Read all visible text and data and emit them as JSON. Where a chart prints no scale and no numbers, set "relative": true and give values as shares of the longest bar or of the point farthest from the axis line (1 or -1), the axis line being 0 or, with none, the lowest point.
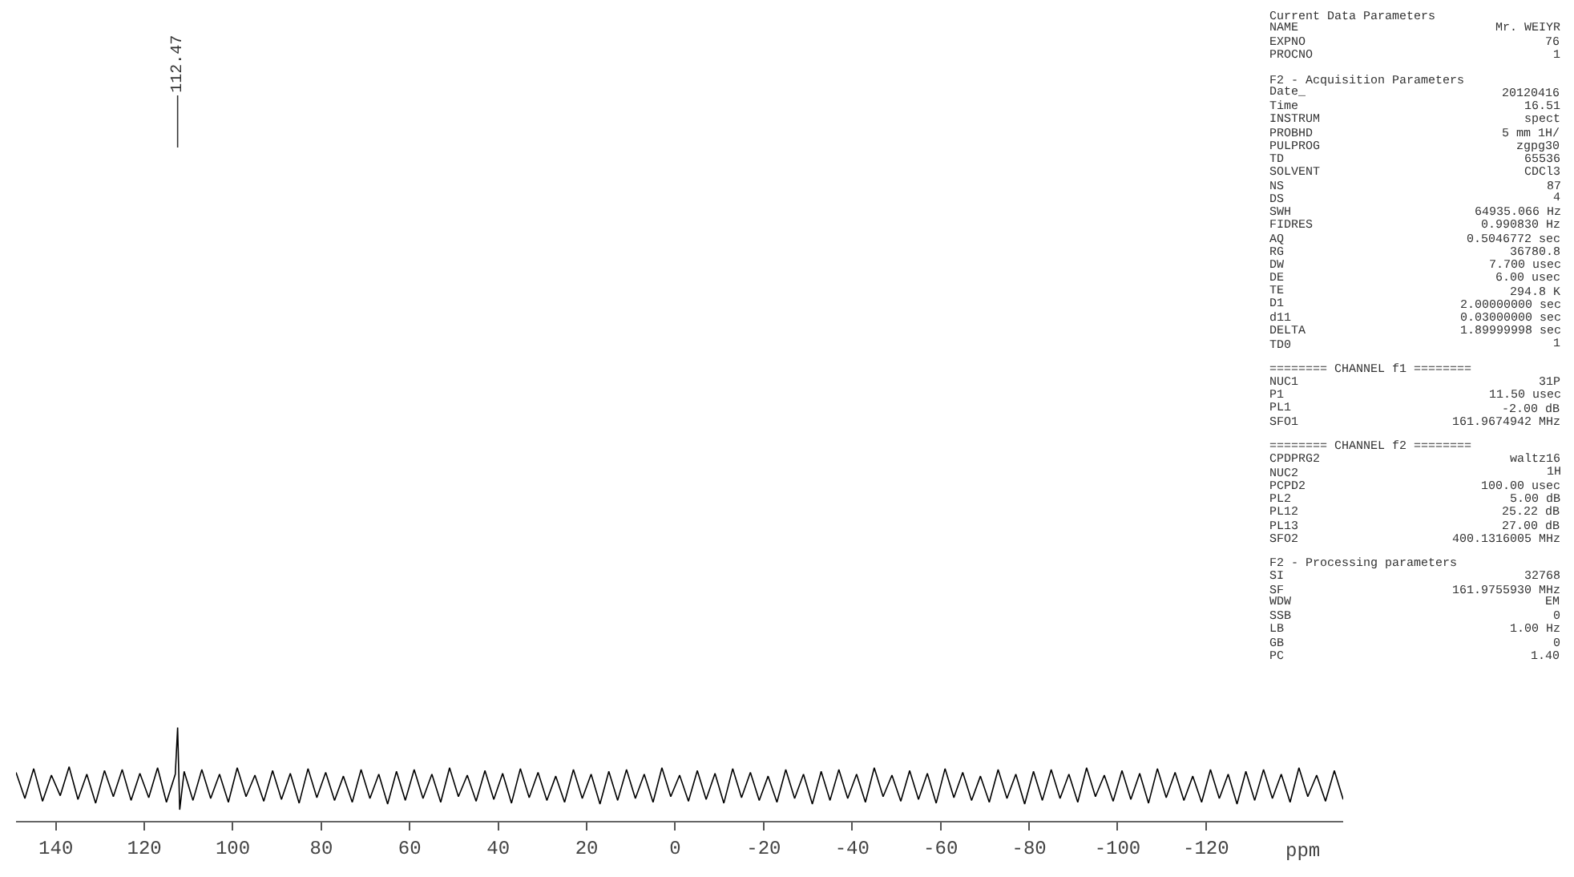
{
  "chart_data": {
    "type": "line",
    "relative": true,
    "xlabel": "ppm",
    "xlim": [
      149,
      -151
    ],
    "xticks": [
      140,
      120,
      100,
      80,
      60,
      40,
      20,
      0,
      -20,
      -40,
      -60,
      -80,
      -100,
      -120
    ],
    "tick_labels": "x",
    "legend": false,
    "marker": "none",
    "line_style": "solid",
    "x": [
      149,
      147,
      145,
      143,
      141,
      139,
      137,
      135,
      133,
      131,
      129,
      127,
      125,
      123,
      121,
      119,
      117,
      115,
      113,
      112.47,
      112,
      111,
      109,
      107,
      105,
      103,
      101,
      99,
      97,
      95,
      93,
      91,
      89,
      87,
      85,
      83,
      81,
      79,
      77,
      75,
      73,
      71,
      69,
      67,
      65,
      63,
      61,
      59,
      57,
      55,
      53,
      51,
      49,
      47,
      45,
      43,
      41,
      39,
      37,
      35,
      33,
      31,
      29,
      27,
      25,
      23,
      21,
      19,
      17,
      15,
      13,
      11,
      9,
      7,
      5,
      3,
      1,
      -1,
      -3,
      -5,
      -7,
      -9,
      -11,
      -13,
      -15,
      -17,
      -19,
      -21,
      -23,
      -25,
      -27,
      -29,
      -31,
      -33,
      -35,
      -37,
      -39,
      -41,
      -43,
      -45,
      -47,
      -49,
      -51,
      -53,
      -55,
      -57,
      -59,
      -61,
      -63,
      -65,
      -67,
      -69,
      -71,
      -73,
      -75,
      -77,
      -79,
      -81,
      -83,
      -85,
      -87,
      -89,
      -91,
      -93,
      -95,
      -97,
      -99,
      -101,
      -103,
      -105,
      -107,
      -109,
      -111,
      -113,
      -115,
      -117,
      -119,
      -121,
      -123,
      -125,
      -127,
      -129,
      -131,
      -133,
      -135,
      -137,
      -139,
      -141,
      -143,
      -145,
      -147,
      -149,
      -151
    ],
    "series": [
      {
        "color": "#000000",
        "values": [
          0.52,
          0.24,
          0.56,
          0.21,
          0.49,
          0.27,
          0.58,
          0.23,
          0.5,
          0.19,
          0.54,
          0.26,
          0.55,
          0.22,
          0.51,
          0.25,
          0.57,
          0.2,
          0.5,
          1.0,
          0.12,
          0.53,
          0.22,
          0.55,
          0.24,
          0.5,
          0.2,
          0.57,
          0.26,
          0.49,
          0.21,
          0.54,
          0.23,
          0.51,
          0.19,
          0.56,
          0.25,
          0.52,
          0.22,
          0.48,
          0.2,
          0.55,
          0.24,
          0.5,
          0.18,
          0.53,
          0.22,
          0.55,
          0.24,
          0.5,
          0.2,
          0.57,
          0.26,
          0.49,
          0.21,
          0.54,
          0.23,
          0.51,
          0.19,
          0.56,
          0.25,
          0.52,
          0.22,
          0.48,
          0.2,
          0.55,
          0.24,
          0.5,
          0.18,
          0.53,
          0.22,
          0.55,
          0.24,
          0.5,
          0.2,
          0.57,
          0.26,
          0.49,
          0.21,
          0.54,
          0.23,
          0.51,
          0.19,
          0.56,
          0.25,
          0.52,
          0.22,
          0.48,
          0.2,
          0.55,
          0.24,
          0.5,
          0.18,
          0.53,
          0.22,
          0.55,
          0.24,
          0.5,
          0.2,
          0.57,
          0.26,
          0.49,
          0.21,
          0.54,
          0.23,
          0.51,
          0.19,
          0.56,
          0.25,
          0.52,
          0.22,
          0.48,
          0.2,
          0.55,
          0.24,
          0.5,
          0.18,
          0.53,
          0.22,
          0.55,
          0.24,
          0.5,
          0.2,
          0.57,
          0.26,
          0.49,
          0.21,
          0.54,
          0.23,
          0.51,
          0.19,
          0.56,
          0.25,
          0.52,
          0.22,
          0.48,
          0.2,
          0.55,
          0.24,
          0.5,
          0.18,
          0.53,
          0.22,
          0.55,
          0.24,
          0.5,
          0.2,
          0.57,
          0.26,
          0.49,
          0.21,
          0.54,
          0.23
        ]
      }
    ],
    "annotations": [
      {
        "text": "112.47",
        "x": 112.47
      },
      "Current Data Parameters",
      "NAME  Mr. WEIYR",
      "EXPNO  76",
      "PROCNO  1",
      "F2 - Acquisition Parameters",
      "Date_  20120416",
      "Time  16.51",
      "INSTRUM  spect",
      "PROBHD  5 mm 1H/",
      "PULPROG  zgpg30",
      "TD  65536",
      "SOLVENT  CDCl3",
      "NS  87",
      "DS  4",
      "SWH  64935.066 Hz",
      "FIDRES  0.990830 Hz",
      "AQ  0.5046772 sec",
      "RG  36780.8",
      "DW  7.700 usec",
      "DE  6.00 usec",
      "TE  294.8 K",
      "D1  2.00000000 sec",
      "d11  0.03000000 sec",
      "DELTA  1.89999998 sec",
      "TD0  1",
      "======== CHANNEL f1 ========",
      "NUC1  31P",
      "P1  11.50 usec",
      "PL1  -2.00 dB",
      "SFO1  161.9674942 MHz",
      "======== CHANNEL f2 ========",
      "CPDPRG2  waltz16",
      "NUC2  1H",
      "PCPD2  100.00 usec",
      "PL2  5.00 dB",
      "PL12  25.22 dB",
      "PL13  27.00 dB",
      "SFO2  400.1316005 MHz",
      "F2 - Processing parameters",
      "SI  32768",
      "SF  161.9755930 MHz",
      "WDW  EM",
      "SSB  0",
      "LB  1.00 Hz",
      "GB  0",
      "PC  1.40"
    ]
  }
}
